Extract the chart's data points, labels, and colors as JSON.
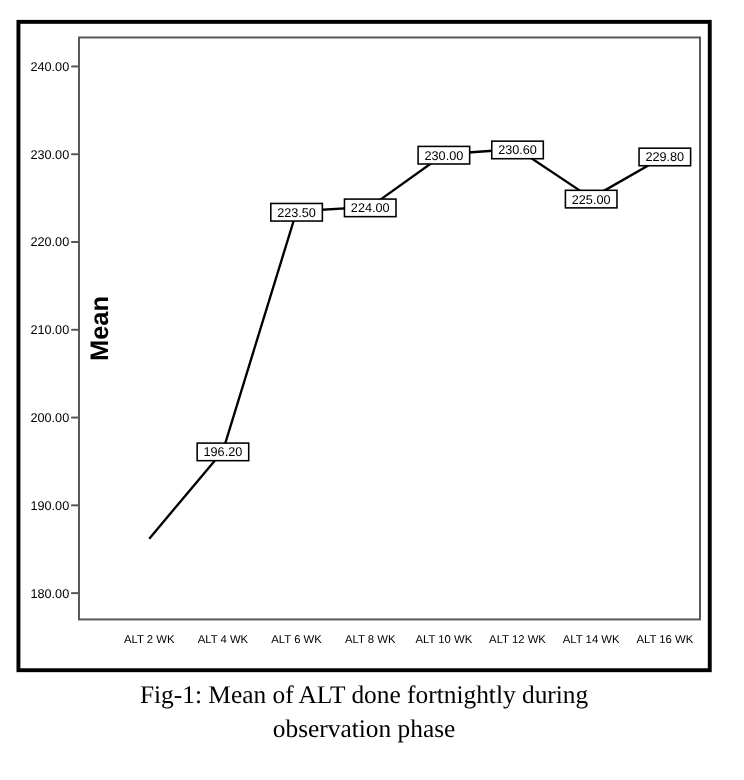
{
  "chart_data": {
    "type": "line",
    "ylabel": "Mean",
    "categories": [
      "ALT 2 WK",
      "ALT 4 WK",
      "ALT 6 WK",
      "ALT 8 WK",
      "ALT 10 WK",
      "ALT 12 WK",
      "ALT 14 WK",
      "ALT 16 WK"
    ],
    "series": [
      {
        "color": "#000000",
        "values": [
          186.2,
          196.2,
          223.5,
          224,
          230,
          230.6,
          225,
          229.8
        ]
      }
    ],
    "value_labels": [
      null,
      "196.20",
      "223.50",
      "224.00",
      "230.00",
      "230.60",
      "225.00",
      "229.80"
    ],
    "ylim": [
      177,
      243.3
    ],
    "yticks": [
      {
        "value": 180,
        "label": "180.00"
      },
      {
        "value": 190,
        "label": "190.00"
      },
      {
        "value": 200,
        "label": "200.00"
      },
      {
        "value": 210,
        "label": "210.00"
      },
      {
        "value": 220,
        "label": "220.00"
      },
      {
        "value": 230,
        "label": "230.00"
      },
      {
        "value": 240,
        "label": "240.00"
      }
    ],
    "grid": false,
    "marker": "square",
    "line_style": "solid",
    "annotations": [
      "Fig-1: Mean of ALT done fortnightly during observation phase"
    ]
  }
}
